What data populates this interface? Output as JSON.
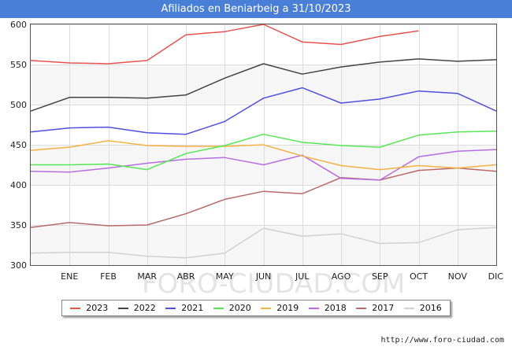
{
  "header": {
    "title": "Afiliados en Beniarbeig a 31/10/2023"
  },
  "watermark": "FORO-CIUDAD.COM",
  "footer": {
    "source": "http://www.foro-ciudad.com"
  },
  "chart_data": {
    "type": "line",
    "title": "Afiliados en Beniarbeig a 31/10/2023",
    "xlabel": "",
    "ylabel": "",
    "categories": [
      "",
      "ENE",
      "FEB",
      "MAR",
      "ABR",
      "MAY",
      "JUN",
      "JUL",
      "AGO",
      "SEP",
      "OCT",
      "NOV",
      "DIC"
    ],
    "ylim": [
      300,
      600
    ],
    "yticks": [
      300,
      350,
      400,
      450,
      500,
      550,
      600
    ],
    "grid": true,
    "legend_position": "bottom",
    "series": [
      {
        "name": "2023",
        "color": "#e8514f",
        "values": [
          555,
          552,
          551,
          555,
          587,
          591,
          600,
          578,
          575,
          585,
          592,
          null,
          null
        ]
      },
      {
        "name": "2022",
        "color": "#444444",
        "values": [
          492,
          509,
          509,
          508,
          512,
          533,
          551,
          538,
          547,
          553,
          557,
          554,
          556
        ]
      },
      {
        "name": "2021",
        "color": "#4f4fe0",
        "values": [
          466,
          471,
          472,
          465,
          463,
          479,
          508,
          521,
          502,
          507,
          517,
          514,
          492
        ]
      },
      {
        "name": "2020",
        "color": "#55e855",
        "values": [
          425,
          425,
          426,
          419,
          439,
          449,
          463,
          453,
          449,
          447,
          462,
          466,
          467
        ]
      },
      {
        "name": "2019",
        "color": "#f6b142",
        "values": [
          443,
          447,
          455,
          449,
          448,
          448,
          450,
          436,
          424,
          419,
          424,
          421,
          425
        ]
      },
      {
        "name": "2018",
        "color": "#b66de0",
        "values": [
          417,
          416,
          421,
          427,
          432,
          434,
          425,
          437,
          408,
          406,
          435,
          442,
          444
        ]
      },
      {
        "name": "2017",
        "color": "#b86a6a",
        "values": [
          347,
          353,
          349,
          350,
          364,
          382,
          392,
          389,
          409,
          406,
          418,
          421,
          417
        ]
      },
      {
        "name": "2016",
        "color": "#d0d0d0",
        "values": [
          315,
          316,
          316,
          311,
          309,
          315,
          346,
          336,
          339,
          327,
          328,
          344,
          347
        ]
      }
    ]
  }
}
